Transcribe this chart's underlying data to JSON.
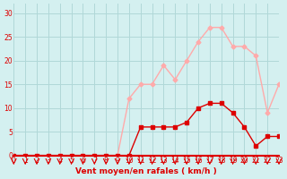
{
  "x": [
    0,
    1,
    2,
    3,
    4,
    5,
    6,
    7,
    8,
    9,
    10,
    11,
    12,
    13,
    14,
    15,
    16,
    17,
    18,
    19,
    20,
    21,
    22,
    23
  ],
  "wind_avg": [
    0,
    0,
    0,
    0,
    0,
    0,
    0,
    0,
    0,
    0,
    0,
    6,
    6,
    6,
    6,
    7,
    10,
    11,
    11,
    9,
    6,
    2,
    4,
    4
  ],
  "wind_gust": [
    0,
    0,
    0,
    0,
    0,
    0,
    0,
    0,
    0,
    0,
    12,
    15,
    15,
    19,
    16,
    20,
    24,
    27,
    27,
    23,
    23,
    21,
    9,
    15
  ],
  "xlabel": "Vent moyen/en rafales ( km/h )",
  "ylabel": "",
  "ylim": [
    0,
    32
  ],
  "xlim": [
    0,
    23
  ],
  "yticks": [
    0,
    5,
    10,
    15,
    20,
    25,
    30
  ],
  "bg_color": "#d4f0f0",
  "grid_color": "#b0d8d8",
  "line_avg_color": "#dd0000",
  "line_gust_color": "#ffaaaa",
  "marker_avg_color": "#dd0000",
  "marker_gust_color": "#ffaaaa",
  "arrow_color": "#dd0000",
  "axis_line_color": "#dd0000",
  "tick_label_color": "#dd0000",
  "xlabel_color": "#dd0000",
  "ylabel_color": "#dd0000"
}
